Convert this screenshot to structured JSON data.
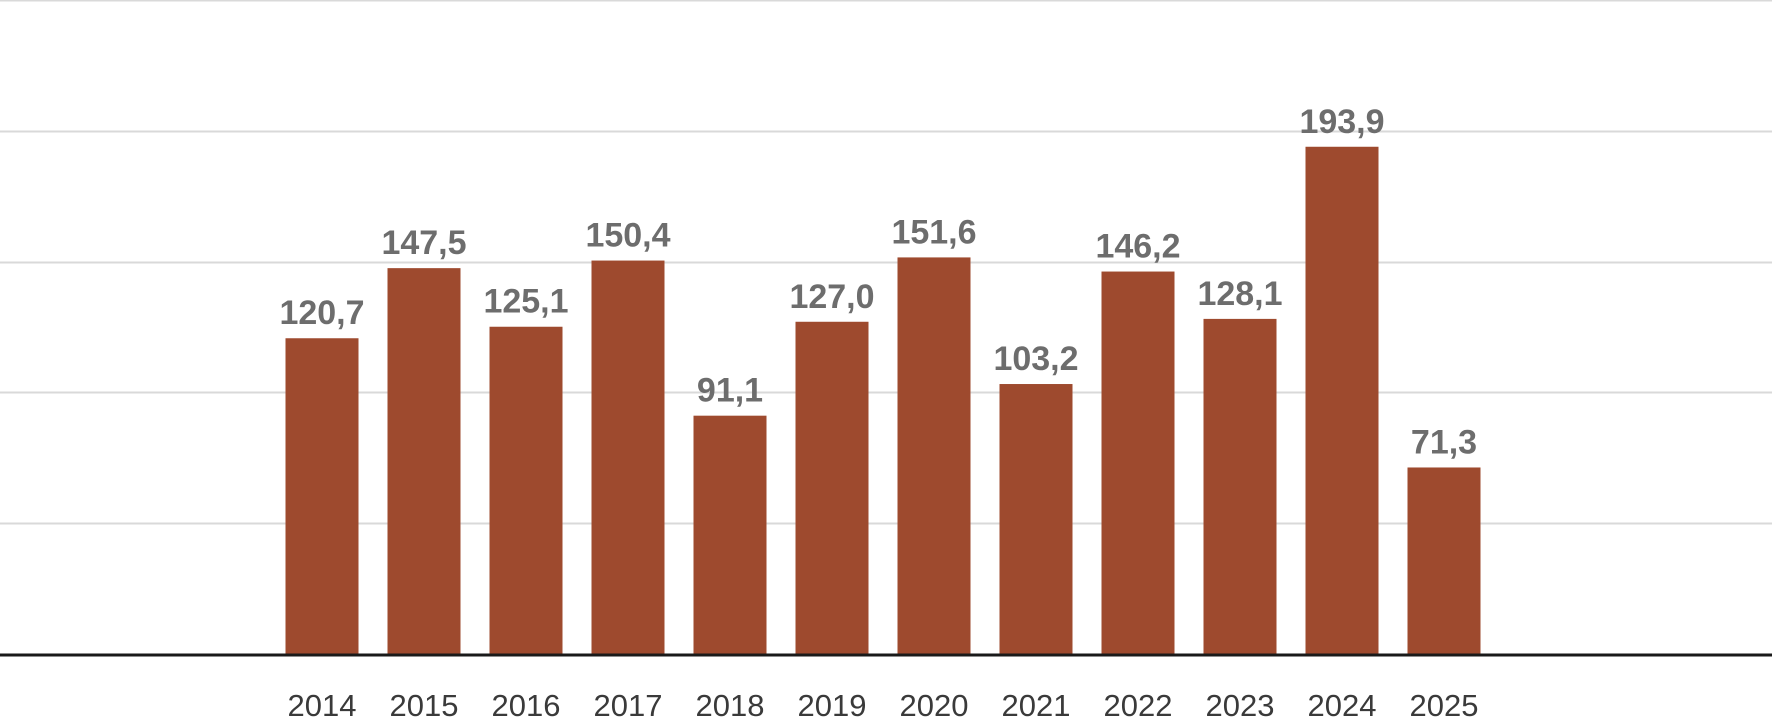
{
  "chart_data": {
    "type": "bar",
    "categories": [
      "2014",
      "2015",
      "2016",
      "2017",
      "2018",
      "2019",
      "2020",
      "2021",
      "2022",
      "2023",
      "2024",
      "2025"
    ],
    "values": [
      120.7,
      147.5,
      125.1,
      150.4,
      91.1,
      127.0,
      151.6,
      103.2,
      146.2,
      128.1,
      193.9,
      71.3
    ],
    "value_labels": [
      "120,7",
      "147,5",
      "125,1",
      "150,4",
      "91,1",
      "127,0",
      "151,6",
      "103,2",
      "146,2",
      "128,1",
      "193,9",
      "71,3"
    ],
    "title": "",
    "xlabel": "",
    "ylabel": "",
    "ylim": [
      0,
      250
    ],
    "gridlines": [
      50,
      100,
      150,
      200,
      250
    ],
    "grid": true,
    "legend": "none",
    "colors": {
      "bar": "#9e4a2e",
      "value_label": "#6d6d6d",
      "tick_label": "#3a3a3a",
      "grid": "#d9d9d9",
      "axis": "#1a1a1a"
    }
  }
}
